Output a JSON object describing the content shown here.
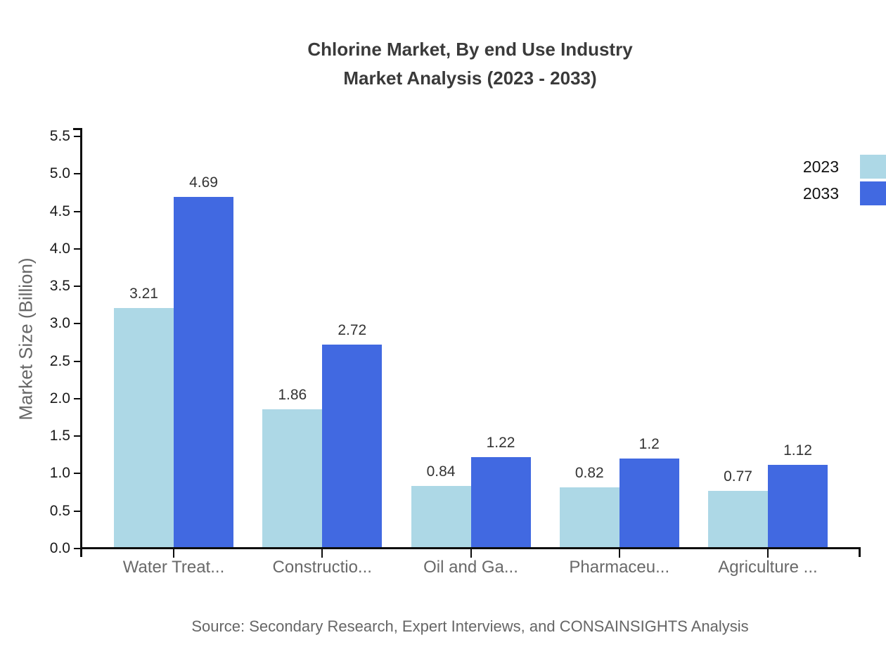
{
  "title": {
    "line1": "Chlorine Market, By end Use Industry",
    "line2": "Market Analysis (2023 - 2033)"
  },
  "axes": {
    "y_title": "Market Size (Billion)"
  },
  "source": {
    "text": "Source: Secondary Research, Expert Interviews, and CONSAINSIGHTS Analysis"
  },
  "chart_data": {
    "type": "bar",
    "title": "Chlorine Market, By end Use Industry Market Analysis (2023 - 2033)",
    "xlabel": "",
    "ylabel": "Market Size (Billion)",
    "categories": [
      "Water Treat...",
      "Constructio...",
      "Oil and Ga...",
      "Pharmaceu...",
      "Agriculture ..."
    ],
    "series": [
      {
        "name": "2023",
        "color": "#ADD8E6",
        "values": [
          3.21,
          1.86,
          0.84,
          0.82,
          0.77
        ]
      },
      {
        "name": "2033",
        "color": "#4169E1",
        "values": [
          4.69,
          2.72,
          1.22,
          1.2,
          1.12
        ]
      }
    ],
    "yticks": [
      "0.0",
      "0.5",
      "1.0",
      "1.5",
      "2.0",
      "2.5",
      "3.0",
      "3.5",
      "4.0",
      "4.5",
      "5.0",
      "5.5"
    ],
    "ytick_step": 0.5,
    "ylim": [
      0,
      5.5
    ],
    "grid": false,
    "legend_position": "top-right",
    "data_labels": true
  }
}
